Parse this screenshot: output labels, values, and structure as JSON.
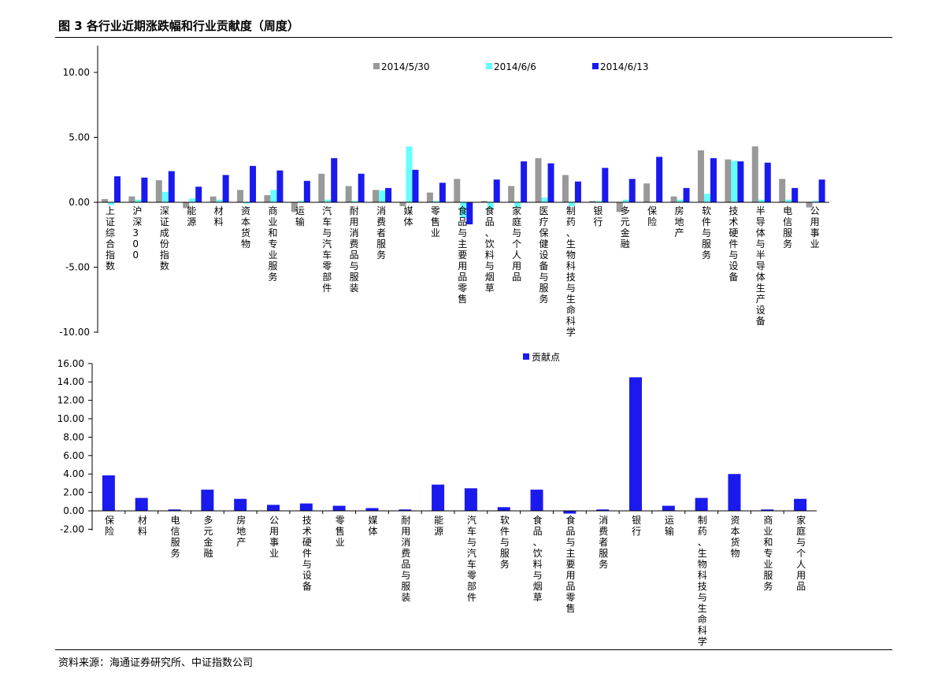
{
  "figure": {
    "title": "图 3 各行业近期涨跌幅和行业贡献度（周度）",
    "source": "资料来源：海通证券研究所、中证指数公司"
  },
  "colors": {
    "s1": "#999999",
    "s2": "#66ffff",
    "s3": "#1a1aee",
    "contrib": "#1a1aee",
    "axis": "#000000"
  },
  "chart_data": [
    {
      "type": "bar",
      "title": "",
      "xlabel": "",
      "ylabel": "",
      "ylim": [
        -10,
        12
      ],
      "yticks": [
        "10.00",
        "5.00",
        "0.00",
        "-5.00",
        "-10.00"
      ],
      "ytick_values": [
        10,
        5,
        0,
        -5,
        -10
      ],
      "legend_position": "top-center",
      "categories": [
        "上证综合指数",
        "沪深300",
        "深证成份指数",
        "能源",
        "材料",
        "资本货物",
        "商业和专业服务",
        "运输",
        "汽车与汽车零部件",
        "耐用消费品与服装",
        "消费者服务",
        "媒体",
        "零售业",
        "食品与主要用品零售",
        "食品、饮料与烟草",
        "家庭与个人用品",
        "医疗保健设备与服务",
        "制药、生物科技与生命科学",
        "银行",
        "多元金融",
        "保险",
        "房地产",
        "软件与服务",
        "技术硬件与设备",
        "半导体与半导体生产设备",
        "电信服务",
        "公用事业"
      ],
      "series": [
        {
          "name": "2014/5/30",
          "values": [
            0.25,
            0.45,
            1.7,
            -0.45,
            0.45,
            0.95,
            0.55,
            -0.75,
            2.2,
            1.25,
            0.95,
            -0.3,
            0.75,
            1.8,
            0.1,
            1.25,
            3.4,
            2.1,
            0.1,
            -0.75,
            1.45,
            0.45,
            4.0,
            3.3,
            4.3,
            1.8,
            -0.4
          ]
        },
        {
          "name": "2014/6/6",
          "values": [
            -0.2,
            0.2,
            0.8,
            0.3,
            0.2,
            -0.1,
            0.95,
            0.1,
            0.2,
            0.1,
            0.9,
            4.3,
            0.1,
            -1.2,
            -0.5,
            -0.4,
            0.35,
            -0.3,
            0.1,
            0.2,
            0.0,
            0.2,
            0.65,
            3.2,
            0.2,
            0.2,
            0.1
          ]
        },
        {
          "name": "2014/6/13",
          "values": [
            2.0,
            1.9,
            2.4,
            1.2,
            2.1,
            2.8,
            2.45,
            1.65,
            3.4,
            2.2,
            1.1,
            2.5,
            1.5,
            -1.7,
            1.75,
            3.15,
            3.0,
            1.6,
            2.65,
            1.8,
            3.5,
            1.1,
            3.4,
            3.15,
            3.05,
            1.1,
            1.75
          ]
        }
      ]
    },
    {
      "type": "bar",
      "title": "",
      "xlabel": "",
      "ylabel": "",
      "ylim": [
        -2,
        16
      ],
      "yticks": [
        "16.00",
        "14.00",
        "12.00",
        "10.00",
        "8.00",
        "6.00",
        "4.00",
        "2.00",
        "0.00",
        "-2.00"
      ],
      "ytick_values": [
        16,
        14,
        12,
        10,
        8,
        6,
        4,
        2,
        0,
        -2
      ],
      "legend_position": "top-center",
      "categories": [
        "保险",
        "材料",
        "电信服务",
        "多元金融",
        "房地产",
        "公用事业",
        "技术硬件与设备",
        "零售业",
        "媒体",
        "耐用消费品与服装",
        "能源",
        "汽车与汽车零部件",
        "软件与服务",
        "食品、饮料与烟草",
        "食品与主要用品零售",
        "消费者服务",
        "银行",
        "运输",
        "制药、生物科技与生命科学",
        "资本货物",
        "商业和专业服务",
        "家庭与个人用品"
      ],
      "series": [
        {
          "name": "贡献点",
          "values": [
            3.85,
            1.4,
            0.15,
            2.3,
            1.3,
            0.65,
            0.8,
            0.55,
            0.3,
            0.15,
            2.85,
            2.45,
            0.4,
            2.3,
            -0.3,
            0.15,
            14.5,
            0.55,
            1.4,
            4.0,
            0.15,
            1.3
          ]
        }
      ]
    }
  ]
}
